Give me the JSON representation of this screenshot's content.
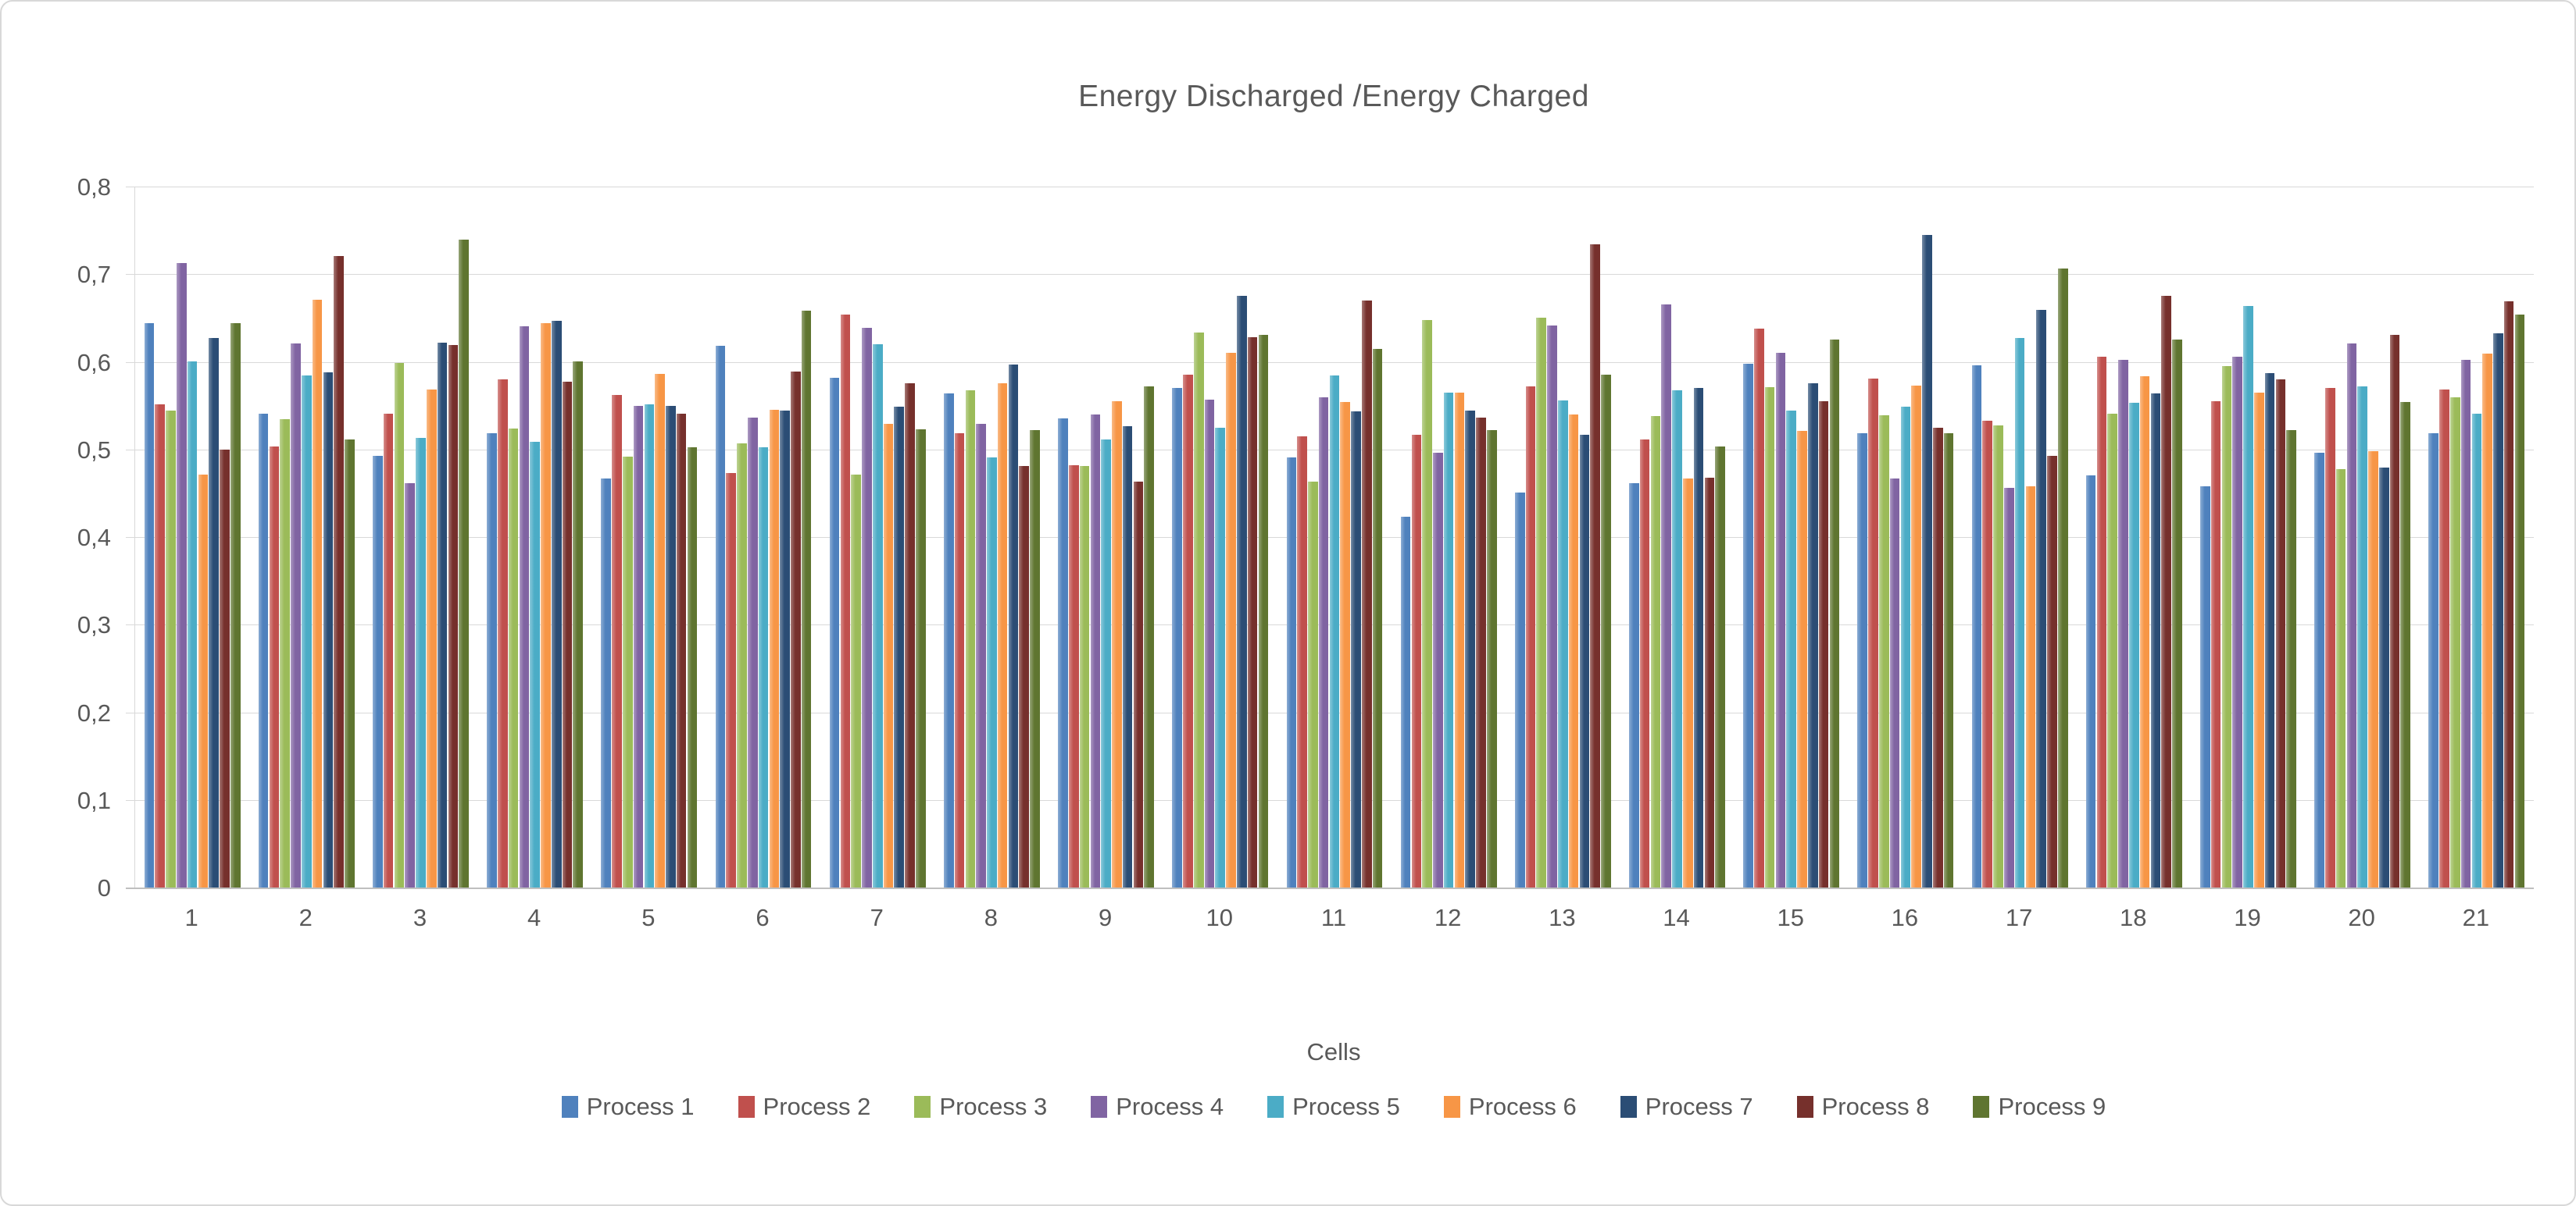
{
  "chart_data": {
    "type": "bar",
    "title": "Energy Discharged /Energy Charged",
    "xlabel": "Cells",
    "ylabel": "",
    "ylim": [
      0,
      0.8
    ],
    "ytick_step": 0.1,
    "ytick_labels": [
      "0",
      "0,1",
      "0,2",
      "0,3",
      "0,4",
      "0,5",
      "0,6",
      "0,7",
      "0,8"
    ],
    "grid": true,
    "legend_position": "bottom",
    "text_color": "#595959",
    "gridline_color": "#d9d9d9",
    "axis_color": "#bfbfbf",
    "categories": [
      "1",
      "2",
      "3",
      "4",
      "5",
      "6",
      "7",
      "8",
      "9",
      "10",
      "11",
      "12",
      "13",
      "14",
      "15",
      "16",
      "17",
      "18",
      "19",
      "20",
      "21"
    ],
    "series": [
      {
        "name": "Process 1",
        "color": "#4F81BD",
        "values": [
          0.645,
          0.542,
          0.494,
          0.519,
          0.468,
          0.619,
          0.583,
          0.565,
          0.536,
          0.571,
          0.492,
          0.424,
          0.452,
          0.462,
          0.599,
          0.519,
          0.597,
          0.471,
          0.459,
          0.497,
          0.519
        ]
      },
      {
        "name": "Process 2",
        "color": "#C0504D",
        "values": [
          0.552,
          0.504,
          0.542,
          0.581,
          0.563,
          0.474,
          0.655,
          0.519,
          0.483,
          0.586,
          0.516,
          0.518,
          0.573,
          0.512,
          0.639,
          0.582,
          0.534,
          0.607,
          0.556,
          0.571,
          0.569
        ]
      },
      {
        "name": "Process 3",
        "color": "#9BBB59",
        "values": [
          0.545,
          0.535,
          0.6,
          0.525,
          0.493,
          0.508,
          0.472,
          0.568,
          0.482,
          0.634,
          0.464,
          0.649,
          0.651,
          0.539,
          0.572,
          0.54,
          0.528,
          0.542,
          0.596,
          0.478,
          0.56
        ]
      },
      {
        "name": "Process 4",
        "color": "#8064A2",
        "values": [
          0.714,
          0.622,
          0.462,
          0.641,
          0.551,
          0.537,
          0.64,
          0.53,
          0.541,
          0.558,
          0.56,
          0.497,
          0.642,
          0.666,
          0.611,
          0.468,
          0.457,
          0.603,
          0.607,
          0.622,
          0.603
        ]
      },
      {
        "name": "Process 5",
        "color": "#4BACC6",
        "values": [
          0.601,
          0.585,
          0.514,
          0.51,
          0.552,
          0.503,
          0.621,
          0.492,
          0.512,
          0.526,
          0.585,
          0.566,
          0.557,
          0.568,
          0.545,
          0.55,
          0.628,
          0.554,
          0.665,
          0.573,
          0.542
        ]
      },
      {
        "name": "Process 6",
        "color": "#F79646",
        "values": [
          0.472,
          0.672,
          0.569,
          0.645,
          0.587,
          0.546,
          0.53,
          0.576,
          0.556,
          0.611,
          0.555,
          0.566,
          0.541,
          0.468,
          0.522,
          0.574,
          0.459,
          0.584,
          0.566,
          0.499,
          0.61
        ]
      },
      {
        "name": "Process 7",
        "color": "#2B4D75",
        "values": [
          0.628,
          0.589,
          0.623,
          0.648,
          0.551,
          0.545,
          0.55,
          0.598,
          0.527,
          0.676,
          0.544,
          0.545,
          0.518,
          0.571,
          0.576,
          0.746,
          0.66,
          0.565,
          0.588,
          0.48,
          0.633
        ]
      },
      {
        "name": "Process 8",
        "color": "#76302C",
        "values": [
          0.501,
          0.722,
          0.62,
          0.578,
          0.542,
          0.59,
          0.576,
          0.482,
          0.464,
          0.629,
          0.671,
          0.537,
          0.735,
          0.469,
          0.556,
          0.526,
          0.494,
          0.676,
          0.581,
          0.632,
          0.67
        ]
      },
      {
        "name": "Process 9",
        "color": "#5F7530",
        "values": [
          0.645,
          0.512,
          0.74,
          0.601,
          0.503,
          0.659,
          0.524,
          0.523,
          0.573,
          0.632,
          0.616,
          0.523,
          0.586,
          0.504,
          0.626,
          0.519,
          0.707,
          0.626,
          0.523,
          0.555,
          0.655
        ]
      }
    ]
  }
}
